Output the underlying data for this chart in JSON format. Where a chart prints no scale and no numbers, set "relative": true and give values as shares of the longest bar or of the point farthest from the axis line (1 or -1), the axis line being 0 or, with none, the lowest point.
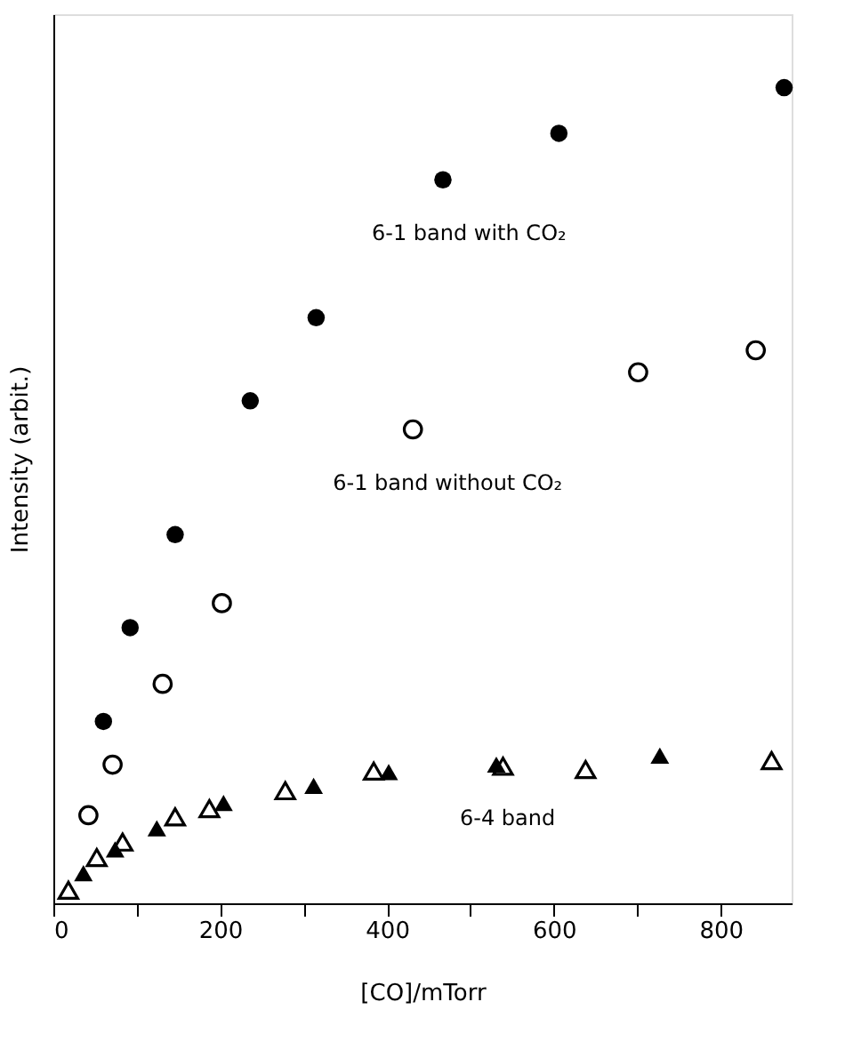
{
  "chart_data": {
    "type": "scatter",
    "relative": true,
    "xlabel": "[CO]/mTorr",
    "ylabel": "Intensity      (arbit.)",
    "xlim": [
      0,
      885
    ],
    "xticks": [
      0,
      {
        "value": 100,
        "label": null
      },
      200,
      {
        "value": 300,
        "label": null
      },
      400,
      {
        "value": 500,
        "label": null
      },
      600,
      {
        "value": 700,
        "label": null
      },
      800
    ],
    "grid": false,
    "series": [
      {
        "name": "6-1 band with CO₂",
        "color": "#000000",
        "marker": "circle",
        "x": [
          60,
          92,
          146,
          236,
          315,
          467,
          606,
          876
        ],
        "values": [
          0.223,
          0.338,
          0.452,
          0.616,
          0.718,
          0.887,
          0.944,
          1
        ]
      },
      {
        "name": "6-1 band without CO₂",
        "color": "#000000",
        "marker": "circle",
        "x": [
          42,
          71,
          131,
          202,
          431,
          701,
          842
        ],
        "values": [
          0.108,
          0.17,
          0.269,
          0.368,
          0.581,
          0.651,
          0.678
        ]
      },
      {
        "name": "6-4 band",
        "color": "#000000",
        "marker": "triangle",
        "x": [
          36,
          74,
          124,
          204,
          312,
          402,
          531,
          727
        ],
        "values": [
          0.037,
          0.066,
          0.092,
          0.123,
          0.144,
          0.161,
          0.17,
          0.181
        ]
      },
      {
        "color": "#000000",
        "marker": "triangle",
        "x": [
          18,
          52,
          83,
          146,
          187,
          278,
          384,
          539,
          638,
          861
        ],
        "values": [
          0.016,
          0.056,
          0.075,
          0.106,
          0.116,
          0.138,
          0.162,
          0.168,
          0.164,
          0.175
        ]
      }
    ]
  }
}
